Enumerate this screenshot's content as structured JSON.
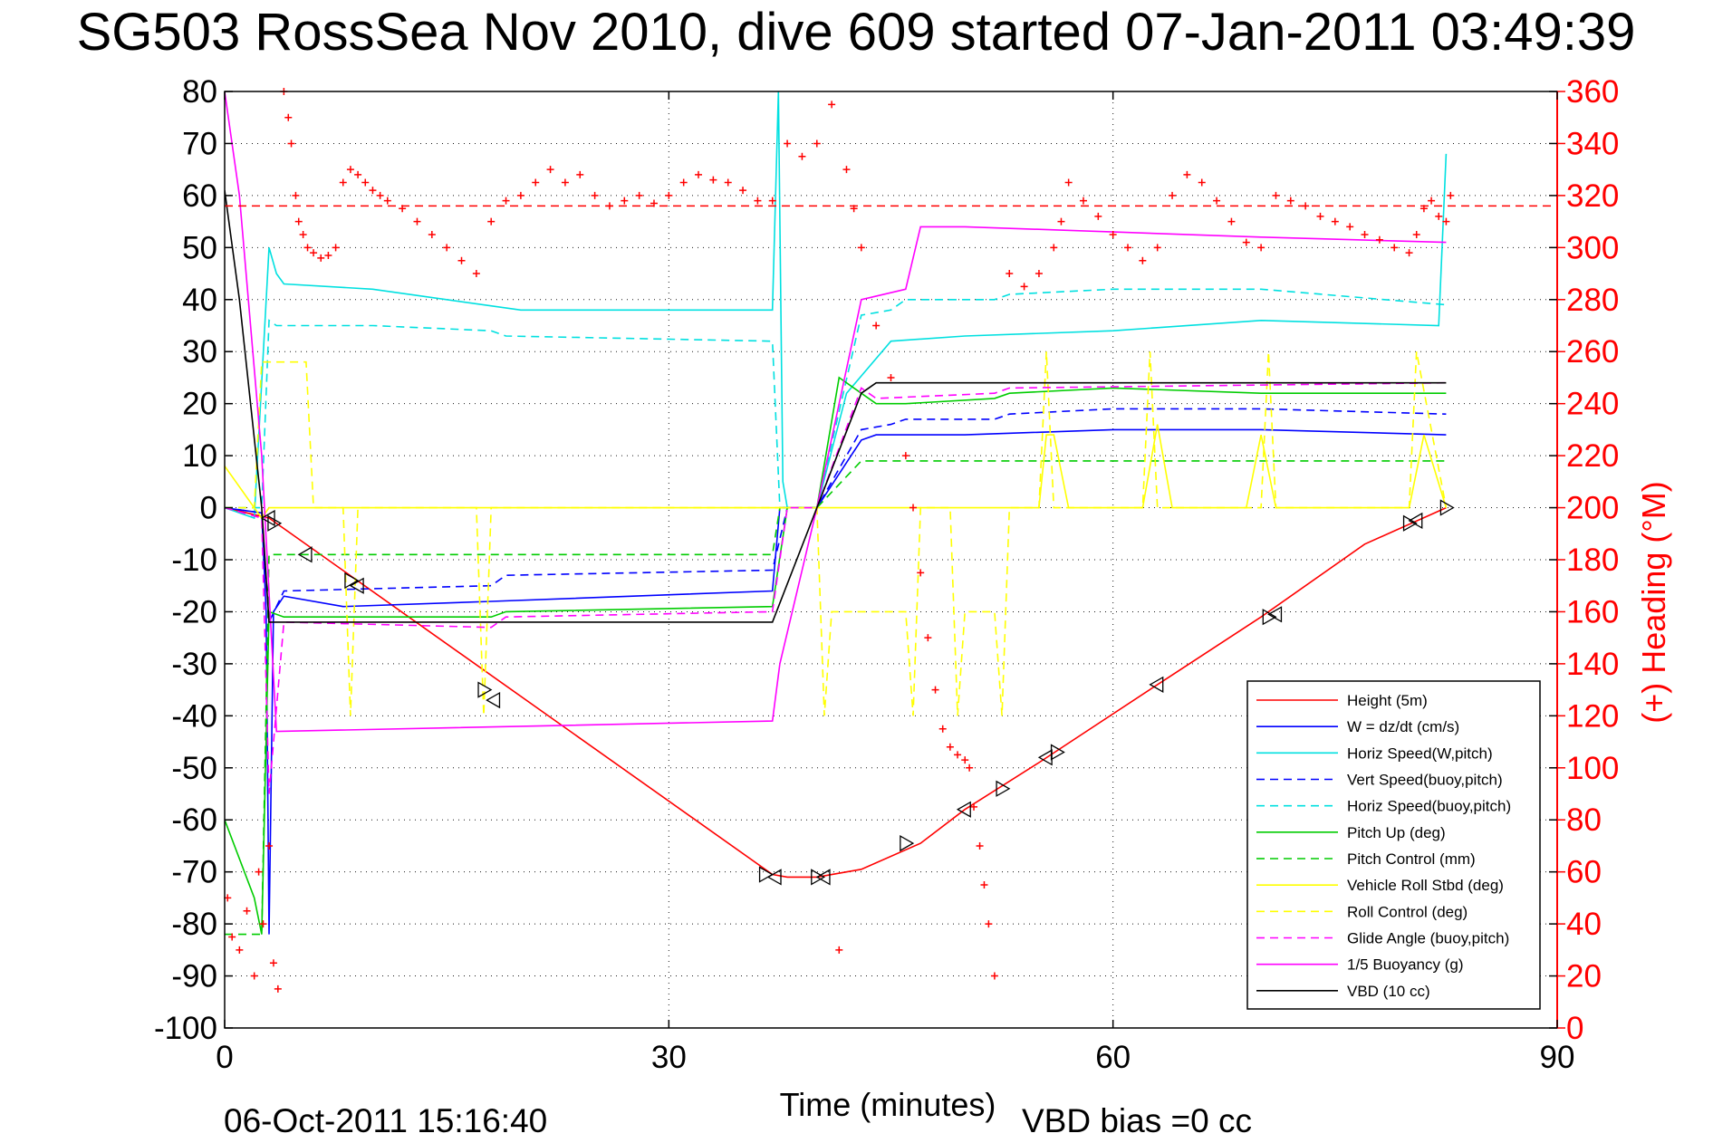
{
  "chart_data": {
    "type": "line",
    "title": "SG503 RossSea Nov 2010, dive 609 started 07-Jan-2011 03:49:39",
    "xlabel": "Time (minutes)",
    "ylabel_right": "(+) Heading (°M)",
    "xlim": [
      0,
      90
    ],
    "ylim": [
      -100,
      80
    ],
    "ylim_right": [
      0,
      360
    ],
    "x_ticks": [
      "0",
      "30",
      "60",
      "90"
    ],
    "y_ticks": [
      "80",
      "70",
      "60",
      "50",
      "40",
      "30",
      "20",
      "10",
      "0",
      "-10",
      "-20",
      "-30",
      "-40",
      "-50",
      "-60",
      "-70",
      "-80",
      "-90",
      "-100"
    ],
    "y_ticks_right": [
      "360",
      "340",
      "320",
      "300",
      "280",
      "260",
      "240",
      "220",
      "200",
      "180",
      "160",
      "140",
      "120",
      "100",
      "80",
      "60",
      "40",
      "20",
      "0"
    ],
    "grid": true,
    "legend_position": "bottom-right",
    "footer_date": "06-Oct-2011 15:16:40",
    "footer_note": "VBD bias =0 cc",
    "series": [
      {
        "name": "Height (5m)",
        "color": "#ff0000",
        "style": "solid",
        "x": [
          0,
          3,
          37,
          38,
          40,
          43,
          47,
          50,
          55,
          63,
          70,
          77,
          82.5
        ],
        "y": [
          0,
          -2,
          -70.5,
          -71,
          -71,
          -69.5,
          -64.5,
          -58,
          -49,
          -34,
          -21,
          -7,
          0
        ]
      },
      {
        "name": "W = dz/dt (cm/s)",
        "color": "#0000ff",
        "style": "solid",
        "x": [
          0,
          2.5,
          2.8,
          3,
          3.3,
          4,
          8,
          18,
          37,
          37.5,
          40,
          43,
          44,
          50,
          60,
          70,
          82.5
        ],
        "y": [
          0,
          -1,
          -20,
          -82,
          -20,
          -17,
          -19,
          -18,
          -16,
          0,
          0,
          13,
          14,
          14,
          15,
          15,
          14
        ]
      },
      {
        "name": "Horiz Speed(W,pitch)",
        "color": "#00e0e0",
        "style": "solid",
        "x": [
          0,
          2,
          3,
          3.5,
          4,
          10,
          20,
          30,
          37,
          37.4,
          37.7,
          38,
          40,
          42,
          45,
          50,
          60,
          70,
          82,
          82.5
        ],
        "y": [
          0,
          -2,
          50,
          45,
          43,
          42,
          38,
          38,
          38,
          80,
          5,
          0,
          0,
          22,
          32,
          33,
          34,
          36,
          35,
          68
        ]
      },
      {
        "name": "Vert Speed(buoy,pitch)",
        "color": "#0000ff",
        "style": "dashed",
        "x": [
          0,
          2.5,
          3,
          4,
          18,
          19,
          37,
          38,
          40,
          43,
          45,
          46,
          52,
          53,
          60,
          70,
          82.5
        ],
        "y": [
          0,
          -1,
          -22,
          -16,
          -15,
          -13,
          -12,
          0,
          0,
          15,
          16,
          17,
          17,
          18,
          19,
          19,
          18
        ]
      },
      {
        "name": "Horiz Speed(buoy,pitch)",
        "color": "#00e0e0",
        "style": "dashed",
        "x": [
          0,
          2.5,
          3,
          3.5,
          10,
          18,
          19,
          37,
          37.5,
          38,
          40,
          43,
          45,
          46,
          52,
          53,
          60,
          70,
          82.5
        ],
        "y": [
          0,
          0,
          36,
          35,
          35,
          34,
          33,
          32,
          0,
          0,
          0,
          37,
          38,
          40,
          40,
          41,
          42,
          42,
          39
        ]
      },
      {
        "name": "Pitch Up (deg)",
        "color": "#00cc00",
        "style": "solid",
        "x": [
          0,
          2,
          2.5,
          3,
          4,
          18,
          19,
          37,
          38,
          40,
          41.5,
          43,
          44,
          46,
          52,
          53,
          60,
          70,
          82.5
        ],
        "y": [
          -60,
          -75,
          -82,
          -20,
          -21,
          -21,
          -20,
          -19,
          0,
          0,
          25,
          22,
          20,
          20,
          21,
          22,
          23,
          22,
          22
        ]
      },
      {
        "name": "Pitch Control (mm)",
        "color": "#00cc00",
        "style": "dashed",
        "x": [
          0,
          2.5,
          3,
          37,
          37.5,
          40,
          43,
          44,
          82.5
        ],
        "y": [
          -82,
          -82,
          -9,
          -9,
          0,
          0,
          9,
          9,
          9
        ]
      },
      {
        "name": "Vehicle Roll Stbd (deg)",
        "color": "#ffff00",
        "style": "solid",
        "x": [
          0,
          2,
          2.5,
          3,
          5,
          6,
          40,
          45,
          52,
          53,
          55,
          55.5,
          56,
          57,
          62,
          63,
          64,
          69,
          70,
          71,
          80,
          81,
          82.5
        ],
        "y": [
          8,
          0,
          -2,
          0,
          0,
          0,
          0,
          0,
          0,
          0,
          0,
          14,
          14,
          0,
          0,
          16,
          0,
          0,
          14,
          0,
          0,
          14,
          0
        ]
      },
      {
        "name": "Roll Control (deg)",
        "color": "#ffff00",
        "style": "dashed",
        "x": [
          0,
          2,
          2.5,
          3,
          5.5,
          6,
          8,
          8.5,
          9,
          17,
          17.5,
          18,
          37,
          40,
          40.5,
          41,
          46,
          46.5,
          47,
          49,
          49.5,
          50,
          52,
          52.5,
          53,
          55,
          55.5,
          56,
          62,
          62.5,
          63,
          70,
          70.5,
          71,
          80,
          80.5,
          82.5
        ],
        "y": [
          0,
          0,
          28,
          28,
          28,
          0,
          0,
          -40,
          0,
          0,
          -40,
          0,
          0,
          0,
          -40,
          -20,
          -20,
          -40,
          0,
          0,
          -40,
          -20,
          -20,
          -40,
          0,
          0,
          30,
          0,
          0,
          30,
          0,
          0,
          30,
          0,
          0,
          30,
          0
        ]
      },
      {
        "name": "Glide Angle (buoy,pitch)",
        "color": "#ff00ff",
        "style": "dashed",
        "x": [
          0,
          2.5,
          3,
          4,
          18,
          19,
          37,
          38,
          40,
          43,
          44,
          52,
          53,
          82.5
        ],
        "y": [
          0,
          -2,
          -55,
          -22,
          -23,
          -21,
          -20,
          0,
          0,
          23,
          21,
          22,
          23,
          24
        ]
      },
      {
        "name": "1/5 Buoyancy (g)",
        "color": "#ff00ff",
        "style": "solid",
        "x": [
          0,
          1,
          2.5,
          3.5,
          37,
          37.5,
          40,
          43,
          46,
          47,
          50,
          60,
          70,
          82.5
        ],
        "y": [
          80,
          60,
          10,
          -43,
          -41,
          -30,
          0,
          40,
          42,
          54,
          54,
          53,
          52,
          51
        ]
      },
      {
        "name": "VBD (10 cc)",
        "color": "#000000",
        "style": "solid",
        "x": [
          0,
          1,
          2.5,
          3,
          37,
          40,
          43,
          44,
          82.5
        ],
        "y": [
          61,
          40,
          0,
          -22,
          -22,
          0,
          22,
          24,
          24
        ]
      }
    ],
    "heading_series": {
      "color": "#ff0000",
      "marker": "+",
      "reference_deg": 316,
      "x": [
        0.2,
        0.5,
        1.0,
        1.5,
        2.0,
        2.3,
        2.6,
        3.0,
        3.3,
        3.6,
        4.0,
        4.3,
        4.5,
        4.8,
        5.0,
        5.3,
        5.6,
        6.0,
        6.5,
        7.0,
        7.5,
        8.0,
        8.5,
        9.0,
        9.5,
        10.0,
        10.5,
        11.0,
        12.0,
        13.0,
        14.0,
        15.0,
        16.0,
        17.0,
        18.0,
        19.0,
        20.0,
        21.0,
        22.0,
        23.0,
        24.0,
        25.0,
        26.0,
        27.0,
        28.0,
        29.0,
        30.0,
        31.0,
        32.0,
        33.0,
        34.0,
        35.0,
        36.0,
        37.0,
        38.0,
        39.0,
        40.0,
        41.0,
        41.5,
        42.0,
        42.5,
        43.0,
        44.0,
        45.0,
        46.0,
        46.5,
        47.0,
        47.5,
        48.0,
        48.5,
        49.0,
        49.5,
        50.0,
        50.3,
        50.6,
        51.0,
        51.3,
        51.6,
        52.0,
        53.0,
        54.0,
        55.0,
        56.0,
        56.5,
        57.0,
        58.0,
        59.0,
        60.0,
        61.0,
        62.0,
        63.0,
        64.0,
        65.0,
        66.0,
        67.0,
        68.0,
        69.0,
        70.0,
        71.0,
        72.0,
        73.0,
        74.0,
        75.0,
        76.0,
        77.0,
        78.0,
        79.0,
        80.0,
        80.5,
        81.0,
        81.5,
        82.0,
        82.5,
        82.8
      ],
      "y": [
        50,
        35,
        30,
        45,
        20,
        60,
        40,
        70,
        25,
        15,
        360,
        350,
        340,
        320,
        310,
        305,
        300,
        298,
        296,
        297,
        300,
        325,
        330,
        328,
        325,
        322,
        320,
        318,
        315,
        310,
        305,
        300,
        295,
        290,
        310,
        318,
        320,
        325,
        330,
        325,
        328,
        320,
        316,
        318,
        320,
        317,
        320,
        325,
        328,
        326,
        325,
        322,
        318,
        318,
        340,
        335,
        340,
        355,
        30,
        330,
        315,
        300,
        270,
        250,
        220,
        200,
        175,
        150,
        130,
        115,
        108,
        105,
        103,
        100,
        85,
        70,
        55,
        40,
        20,
        290,
        285,
        290,
        300,
        310,
        325,
        318,
        312,
        305,
        300,
        295,
        300,
        320,
        328,
        325,
        318,
        310,
        302,
        300,
        320,
        318,
        316,
        312,
        310,
        308,
        305,
        303,
        300,
        298,
        305,
        315,
        318,
        312,
        310,
        320
      ]
    },
    "triangle_markers": {
      "x": [
        3,
        3.3,
        5.5,
        8.5,
        9.0,
        17.5,
        18.2,
        36.5,
        37.2,
        40.0,
        40.5,
        46,
        50,
        52.5,
        55.5,
        56.2,
        63,
        70.5,
        71,
        80,
        80.5,
        82.5
      ],
      "y": [
        -2,
        -3,
        -9,
        -14,
        -15,
        -35,
        -37,
        -70.5,
        -71,
        -71,
        -71,
        -64.5,
        -58,
        -54,
        -48,
        -47,
        -34,
        -21,
        -20.5,
        -3,
        -2.5,
        0
      ]
    }
  }
}
